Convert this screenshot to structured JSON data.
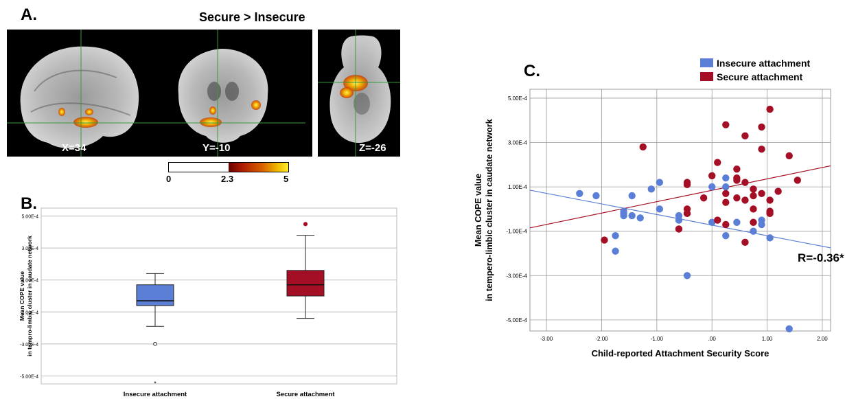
{
  "panel_a": {
    "letter": "A.",
    "title": "Secure > Insecure",
    "slices": [
      "X=34",
      "Y=-10",
      "Z=-26"
    ],
    "colorbar": {
      "labels": [
        "0",
        "2.3",
        "5"
      ],
      "colors": [
        "#ffffff",
        "#6a0000",
        "#d86000",
        "#ffee33"
      ]
    }
  },
  "panel_b": {
    "letter": "B."
  },
  "panel_c": {
    "letter": "C.",
    "r_label": "R=-0.36*"
  },
  "chart_data": [
    {
      "type": "box",
      "panel": "B",
      "ylabel": [
        "Mean COPE value",
        "in tempro-limbic cluster in caudate network"
      ],
      "yticks": [
        "5.00E-4",
        "3.00E-4",
        "1.00E-4",
        "-1.00E-4",
        "-3.00E-4",
        "-5.00E-4"
      ],
      "ylim": [
        -0.00055,
        0.00055
      ],
      "categories": [
        "Insecure attachment",
        "Secure attachment"
      ],
      "colors": [
        "#5b7fd6",
        "#a50f25"
      ],
      "boxes": [
        {
          "whisker_low": -0.00019,
          "q1": -6e-05,
          "median": -3e-05,
          "q3": 7e-05,
          "whisker_high": 0.00014,
          "outliers": [
            -0.0003
          ],
          "extremes": [
            -0.00054
          ]
        },
        {
          "whisker_low": -0.00014,
          "q1": 0.0,
          "median": 7e-05,
          "q3": 0.00016,
          "whisker_high": 0.00038,
          "outliers": [
            0.00045
          ],
          "extremes": []
        }
      ]
    },
    {
      "type": "scatter",
      "panel": "C",
      "xlabel": "Child-reported Attachment Security Score",
      "ylabel": [
        "Mean COPE value",
        "in tempero-limbic cluster in caudate network"
      ],
      "xticks": [
        "-3.00",
        "-2.00",
        "-1.00",
        ".00",
        "1.00",
        "2.00"
      ],
      "yticks": [
        "5.00E-4",
        "3.00E-4",
        "1.00E-4",
        "-1.00E-4",
        "-3.00E-4",
        "-5.00E-4"
      ],
      "xlim": [
        -3.3,
        2.15
      ],
      "ylim": [
        -0.00055,
        0.00054
      ],
      "grid": true,
      "legend_position": "top",
      "series": [
        {
          "name": "Insecure attachment",
          "color": "#5b7fd6",
          "points": [
            [
              -2.4,
              7e-05
            ],
            [
              -2.1,
              6e-05
            ],
            [
              -1.75,
              -0.00012
            ],
            [
              -1.75,
              -0.00019
            ],
            [
              -1.6,
              -1e-05
            ],
            [
              -1.6,
              -2e-05
            ],
            [
              -1.6,
              -3e-05
            ],
            [
              -1.45,
              6e-05
            ],
            [
              -1.45,
              -3e-05
            ],
            [
              -1.3,
              -4e-05
            ],
            [
              -1.1,
              9e-05
            ],
            [
              -0.95,
              0.00012
            ],
            [
              -0.95,
              -0.0
            ],
            [
              -0.6,
              -3e-05
            ],
            [
              -0.6,
              -5e-05
            ],
            [
              -0.45,
              -0.0003
            ],
            [
              0.0,
              0.0001
            ],
            [
              0.0,
              -6e-05
            ],
            [
              0.25,
              0.00014
            ],
            [
              0.25,
              0.0001
            ],
            [
              0.25,
              -0.00012
            ],
            [
              0.45,
              -6e-05
            ],
            [
              0.75,
              -0.0001
            ],
            [
              0.9,
              -5e-05
            ],
            [
              0.9,
              -7e-05
            ],
            [
              1.05,
              -0.00013
            ],
            [
              1.4,
              -0.00054
            ]
          ]
        },
        {
          "name": "Secure attachment",
          "color": "#a50f25",
          "points": [
            [
              -1.95,
              -0.00014
            ],
            [
              -1.25,
              0.00028
            ],
            [
              -0.6,
              -9e-05
            ],
            [
              -0.45,
              0.00012
            ],
            [
              -0.45,
              0.00011
            ],
            [
              -0.45,
              0.0
            ],
            [
              -0.45,
              -2e-05
            ],
            [
              -0.15,
              5e-05
            ],
            [
              0.0,
              0.00015
            ],
            [
              0.1,
              0.00021
            ],
            [
              0.1,
              -5e-05
            ],
            [
              0.25,
              0.00038
            ],
            [
              0.25,
              7e-05
            ],
            [
              0.25,
              3e-05
            ],
            [
              0.25,
              -7e-05
            ],
            [
              0.45,
              0.00018
            ],
            [
              0.45,
              0.00014
            ],
            [
              0.45,
              0.00013
            ],
            [
              0.45,
              5e-05
            ],
            [
              0.6,
              0.00033
            ],
            [
              0.6,
              0.00012
            ],
            [
              0.6,
              4e-05
            ],
            [
              0.6,
              -0.00015
            ],
            [
              0.75,
              9e-05
            ],
            [
              0.75,
              6e-05
            ],
            [
              0.75,
              0.0
            ],
            [
              0.75,
              -6e-05
            ],
            [
              0.9,
              0.00037
            ],
            [
              0.9,
              0.00027
            ],
            [
              0.9,
              7e-05
            ],
            [
              1.05,
              0.00045
            ],
            [
              1.05,
              4e-05
            ],
            [
              1.05,
              -1e-05
            ],
            [
              1.05,
              -2e-05
            ],
            [
              1.2,
              8e-05
            ],
            [
              1.4,
              0.00024
            ],
            [
              1.55,
              0.00013
            ]
          ]
        }
      ],
      "fit_lines": [
        {
          "series": "Insecure attachment",
          "from": [
            -3.3,
            8.5e-05
          ],
          "to": [
            2.15,
            -0.000175
          ]
        },
        {
          "series": "Secure attachment",
          "from": [
            -3.3,
            -8.5e-05
          ],
          "to": [
            2.15,
            0.000195
          ]
        }
      ]
    }
  ]
}
